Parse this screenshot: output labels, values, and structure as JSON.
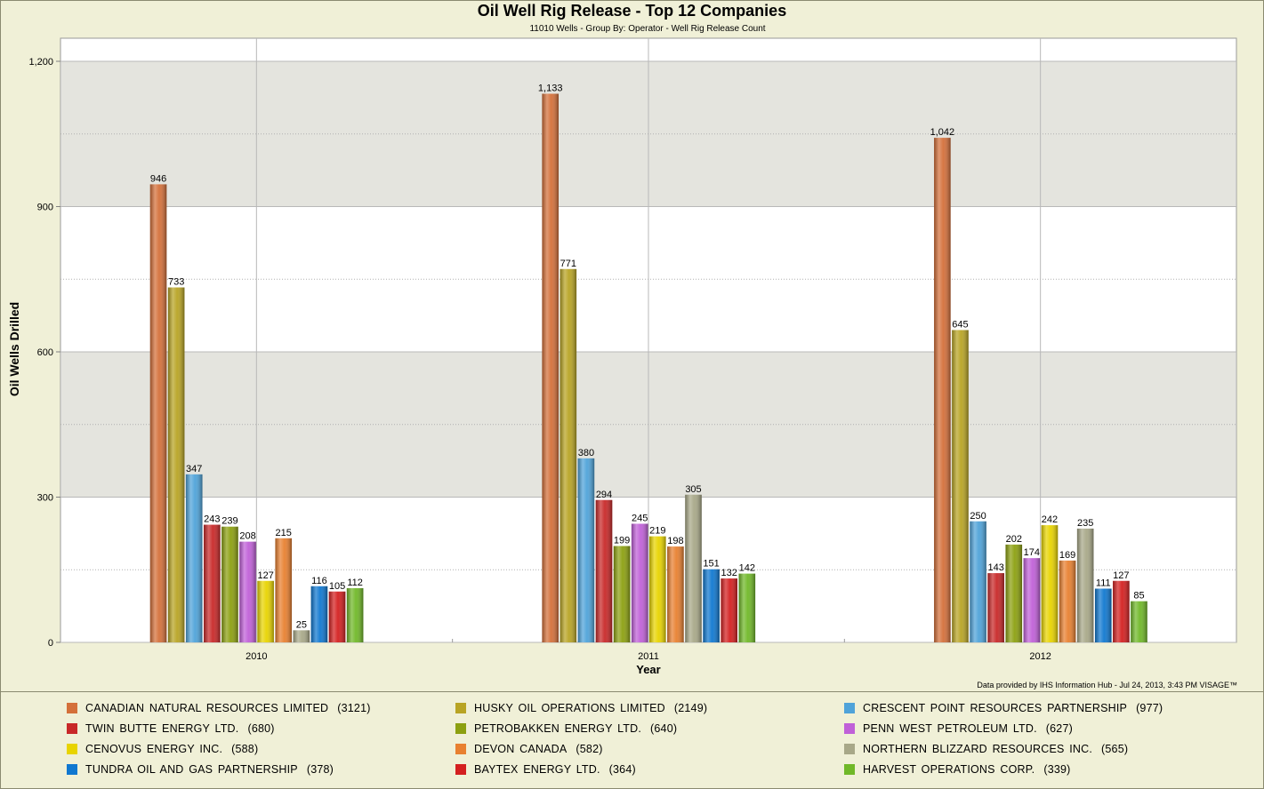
{
  "header": {
    "title": "Oil Well Rig Release - Top 12 Companies",
    "subtitle": "11010 Wells - Group By: Operator - Well Rig Release Count"
  },
  "footer": {
    "credit": "Data provided by IHS Information Hub - Jul 24, 2013, 3:43 PM  VISAGE™"
  },
  "chart_data": {
    "type": "bar",
    "title": "Oil Well Rig Release - Top 12 Companies",
    "subtitle": "11010 Wells - Group By: Operator - Well Rig Release Count",
    "xlabel": "Year",
    "ylabel": "Oil Wells Drilled",
    "ylim": [
      0,
      1200
    ],
    "yticks": [
      0,
      300,
      600,
      900,
      1200
    ],
    "ytick_labels": [
      "0",
      "300",
      "600",
      "900",
      "1,200"
    ],
    "grid": true,
    "legend_position": "bottom",
    "categories": [
      "2010",
      "2011",
      "2012"
    ],
    "series": [
      {
        "name": "CANADIAN NATURAL RESOURCES LIMITED",
        "total": "(3121)",
        "color": "#d4703a",
        "values": [
          946,
          1133,
          1042
        ],
        "labels": [
          "946",
          "1,133",
          "1,042"
        ]
      },
      {
        "name": "HUSKY OIL OPERATIONS LIMITED",
        "total": "(2149)",
        "color": "#b8a424",
        "values": [
          733,
          771,
          645
        ],
        "labels": [
          "733",
          "771",
          "645"
        ]
      },
      {
        "name": "CRESCENT POINT RESOURCES PARTNERSHIP",
        "total": "(977)",
        "color": "#4fa3d9",
        "values": [
          347,
          380,
          250
        ],
        "labels": [
          "347",
          "380",
          "250"
        ]
      },
      {
        "name": "TWIN BUTTE ENERGY LTD.",
        "total": "(680)",
        "color": "#c82828",
        "values": [
          243,
          294,
          143
        ],
        "labels": [
          "243",
          "294",
          "143"
        ]
      },
      {
        "name": "PETROBAKKEN ENERGY LTD.",
        "total": "(640)",
        "color": "#8ca010",
        "values": [
          239,
          199,
          202
        ],
        "labels": [
          "239",
          "199",
          "202"
        ]
      },
      {
        "name": "PENN WEST PETROLEUM LTD.",
        "total": "(627)",
        "color": "#c060d8",
        "values": [
          208,
          245,
          174
        ],
        "labels": [
          "208",
          "245",
          "174"
        ]
      },
      {
        "name": "CENOVUS ENERGY INC.",
        "total": "(588)",
        "color": "#e8d400",
        "values": [
          127,
          219,
          242
        ],
        "labels": [
          "127",
          "219",
          "242"
        ]
      },
      {
        "name": "DEVON CANADA",
        "total": "(582)",
        "color": "#e88030",
        "values": [
          215,
          198,
          169
        ],
        "labels": [
          "215",
          "198",
          "169"
        ]
      },
      {
        "name": "NORTHERN BLIZZARD RESOURCES INC.",
        "total": "(565)",
        "color": "#a8a888",
        "values": [
          25,
          305,
          235
        ],
        "labels": [
          "25",
          "305",
          "235"
        ]
      },
      {
        "name": "TUNDRA OIL AND GAS PARTNERSHIP",
        "total": "(378)",
        "color": "#1078d0",
        "values": [
          116,
          151,
          111
        ],
        "labels": [
          "116",
          "151",
          "111"
        ]
      },
      {
        "name": "BAYTEX ENERGY LTD.",
        "total": "(364)",
        "color": "#d42020",
        "values": [
          105,
          132,
          127
        ],
        "labels": [
          "105",
          "132",
          "127"
        ]
      },
      {
        "name": "HARVEST OPERATIONS CORP.",
        "total": "(339)",
        "color": "#70b828",
        "values": [
          112,
          142,
          85
        ],
        "labels": [
          "112",
          "142",
          "85"
        ]
      }
    ]
  }
}
